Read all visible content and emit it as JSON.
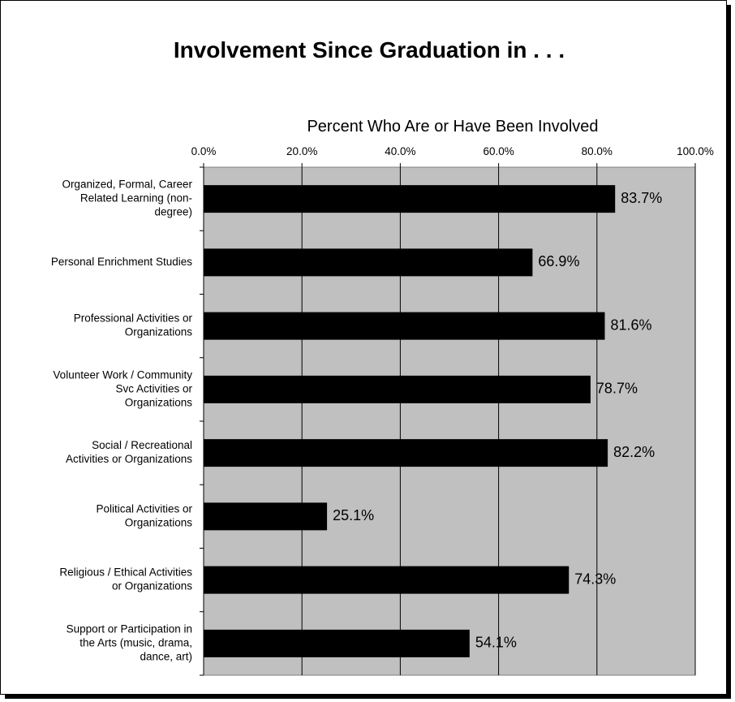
{
  "chart_data": {
    "type": "bar",
    "orientation": "horizontal",
    "title": "Involvement Since Graduation in . . .",
    "xlabel": "Percent Who Are or Have Been Involved",
    "ylabel": "",
    "xlim": [
      0,
      100
    ],
    "tick_labels": [
      "0.0%",
      "20.0%",
      "40.0%",
      "60.0%",
      "80.0%",
      "100.0%"
    ],
    "tick_values": [
      0,
      20,
      40,
      60,
      80,
      100
    ],
    "categories": [
      [
        "Organized, Formal, Career",
        "Related Learning (non-",
        "degree)"
      ],
      [
        "Personal Enrichment Studies"
      ],
      [
        "Professional Activities or",
        "Organizations"
      ],
      [
        "Volunteer Work / Community",
        "Svc Activities or",
        "Organizations"
      ],
      [
        "Social / Recreational",
        "Activities or Organizations"
      ],
      [
        "Political Activities or",
        "Organizations"
      ],
      [
        "Religious / Ethical Activities",
        "or Organizations"
      ],
      [
        "Support or Participation in",
        "the Arts (music, drama,",
        "dance, art)"
      ]
    ],
    "values": [
      83.7,
      66.9,
      81.6,
      78.7,
      82.2,
      25.1,
      74.3,
      54.1
    ],
    "value_labels": [
      "83.7%",
      "66.9%",
      "81.6%",
      "78.7%",
      "82.2%",
      "25.1%",
      "74.3%",
      "54.1%"
    ],
    "grid": true,
    "legend": "none",
    "colors": {
      "plot_bg": "#c0c0c0",
      "bar": "#000000",
      "grid": "#000000"
    }
  }
}
